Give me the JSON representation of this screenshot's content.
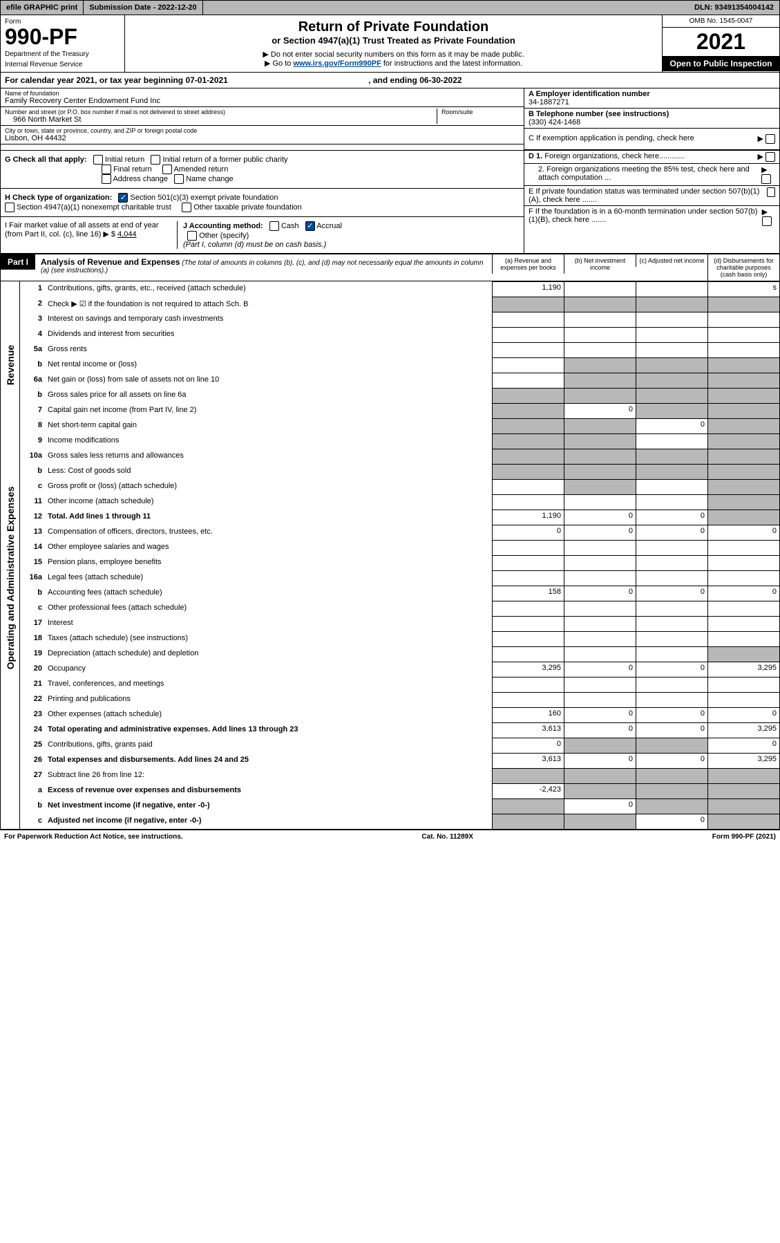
{
  "topbar": {
    "efile": "efile GRAPHIC print",
    "submission": "Submission Date - 2022-12-20",
    "dln": "DLN: 93491354004142"
  },
  "header": {
    "form_word": "Form",
    "form_num": "990-PF",
    "dept": "Department of the Treasury",
    "irs": "Internal Revenue Service",
    "title": "Return of Private Foundation",
    "subtitle": "or Section 4947(a)(1) Trust Treated as Private Foundation",
    "instr1": "▶ Do not enter social security numbers on this form as it may be made public.",
    "instr2_pre": "▶ Go to ",
    "instr2_link": "www.irs.gov/Form990PF",
    "instr2_post": " for instructions and the latest information.",
    "omb": "OMB No. 1545-0047",
    "year": "2021",
    "open": "Open to Public Inspection"
  },
  "cal": {
    "text_pre": "For calendar year 2021, or tax year beginning ",
    "begin": "07-01-2021",
    "text_mid": " , and ending ",
    "end": "06-30-2022"
  },
  "info": {
    "name_label": "Name of foundation",
    "name": "Family Recovery Center Endowment Fund Inc",
    "addr_label": "Number and street (or P.O. box number if mail is not delivered to street address)",
    "addr": "966 North Market St",
    "room_label": "Room/suite",
    "city_label": "City or town, state or province, country, and ZIP or foreign postal code",
    "city": "Lisbon, OH  44432",
    "ein_label": "A Employer identification number",
    "ein": "34-1887271",
    "tel_label": "B Telephone number (see instructions)",
    "tel": "(330) 424-1468",
    "c_label": "C If exemption application is pending, check here",
    "d1": "D 1. Foreign organizations, check here............",
    "d2": "2. Foreign organizations meeting the 85% test, check here and attach computation ...",
    "e": "E  If private foundation status was terminated under section 507(b)(1)(A), check here .......",
    "f": "F  If the foundation is in a 60-month termination under section 507(b)(1)(B), check here .......",
    "g": "G Check all that apply:",
    "g_opts": [
      "Initial return",
      "Initial return of a former public charity",
      "Final return",
      "Amended return",
      "Address change",
      "Name change"
    ],
    "h": "H Check type of organization:",
    "h1": "Section 501(c)(3) exempt private foundation",
    "h2": "Section 4947(a)(1) nonexempt charitable trust",
    "h3": "Other taxable private foundation",
    "i_label": "I Fair market value of all assets at end of year (from Part II, col. (c), line 16) ▶ $",
    "i_val": "4,044",
    "j_label": "J Accounting method:",
    "j_cash": "Cash",
    "j_accrual": "Accrual",
    "j_other": "Other (specify)",
    "j_note": "(Part I, column (d) must be on cash basis.)"
  },
  "part1": {
    "tab": "Part I",
    "title": "Analysis of Revenue and Expenses",
    "note": "(The total of amounts in columns (b), (c), and (d) may not necessarily equal the amounts in column (a) (see instructions).)",
    "cols": {
      "a": "(a)  Revenue and expenses per books",
      "b": "(b)  Net investment income",
      "c": "(c)  Adjusted net income",
      "d": "(d)  Disbursements for charitable purposes (cash basis only)"
    }
  },
  "sides": {
    "rev": "Revenue",
    "exp": "Operating and Administrative Expenses"
  },
  "lines": [
    {
      "n": "1",
      "d": "Contributions, gifts, grants, etc., received (attach schedule)",
      "a": "1,190",
      "b": "",
      "c": "",
      "ds": "s",
      "cs": "s",
      "dd": "s"
    },
    {
      "n": "2",
      "d": "Check ▶ ☑ if the foundation is not required to attach Sch. B",
      "sa": "s",
      "sb": "s",
      "sc": "s",
      "sd": "s"
    },
    {
      "n": "3",
      "d": "Interest on savings and temporary cash investments"
    },
    {
      "n": "4",
      "d": "Dividends and interest from securities"
    },
    {
      "n": "5a",
      "d": "Gross rents"
    },
    {
      "n": "b",
      "d": "Net rental income or (loss)",
      "sb": "s",
      "sc": "s",
      "sd": "s"
    },
    {
      "n": "6a",
      "d": "Net gain or (loss) from sale of assets not on line 10",
      "sb": "s",
      "sc": "s",
      "sd": "s"
    },
    {
      "n": "b",
      "d": "Gross sales price for all assets on line 6a",
      "sa": "s",
      "sb": "s",
      "sc": "s",
      "sd": "s"
    },
    {
      "n": "7",
      "d": "Capital gain net income (from Part IV, line 2)",
      "b": "0",
      "sa": "s",
      "sc": "s",
      "sd": "s"
    },
    {
      "n": "8",
      "d": "Net short-term capital gain",
      "c": "0",
      "sa": "s",
      "sb": "s",
      "sd": "s"
    },
    {
      "n": "9",
      "d": "Income modifications",
      "sa": "s",
      "sb": "s",
      "sd": "s"
    },
    {
      "n": "10a",
      "d": "Gross sales less returns and allowances",
      "sa": "s",
      "sb": "s",
      "sc": "s",
      "sd": "s"
    },
    {
      "n": "b",
      "d": "Less: Cost of goods sold",
      "sa": "s",
      "sb": "s",
      "sc": "s",
      "sd": "s"
    },
    {
      "n": "c",
      "d": "Gross profit or (loss) (attach schedule)",
      "sb": "s",
      "sd": "s"
    },
    {
      "n": "11",
      "d": "Other income (attach schedule)",
      "sd": "s"
    },
    {
      "n": "12",
      "d": "Total. Add lines 1 through 11",
      "bold": true,
      "a": "1,190",
      "b": "0",
      "c": "0",
      "sd": "s"
    },
    {
      "n": "13",
      "d": "Compensation of officers, directors, trustees, etc.",
      "a": "0",
      "b": "0",
      "c": "0",
      "dd": "0"
    },
    {
      "n": "14",
      "d": "Other employee salaries and wages"
    },
    {
      "n": "15",
      "d": "Pension plans, employee benefits"
    },
    {
      "n": "16a",
      "d": "Legal fees (attach schedule)"
    },
    {
      "n": "b",
      "d": "Accounting fees (attach schedule)",
      "a": "158",
      "b": "0",
      "c": "0",
      "dd": "0"
    },
    {
      "n": "c",
      "d": "Other professional fees (attach schedule)"
    },
    {
      "n": "17",
      "d": "Interest"
    },
    {
      "n": "18",
      "d": "Taxes (attach schedule) (see instructions)"
    },
    {
      "n": "19",
      "d": "Depreciation (attach schedule) and depletion",
      "sd": "s"
    },
    {
      "n": "20",
      "d": "Occupancy",
      "a": "3,295",
      "b": "0",
      "c": "0",
      "dd": "3,295"
    },
    {
      "n": "21",
      "d": "Travel, conferences, and meetings"
    },
    {
      "n": "22",
      "d": "Printing and publications"
    },
    {
      "n": "23",
      "d": "Other expenses (attach schedule)",
      "a": "160",
      "b": "0",
      "c": "0",
      "dd": "0"
    },
    {
      "n": "24",
      "d": "Total operating and administrative expenses. Add lines 13 through 23",
      "bold": true,
      "a": "3,613",
      "b": "0",
      "c": "0",
      "dd": "3,295"
    },
    {
      "n": "25",
      "d": "Contributions, gifts, grants paid",
      "a": "0",
      "sb": "s",
      "sc": "s",
      "dd": "0"
    },
    {
      "n": "26",
      "d": "Total expenses and disbursements. Add lines 24 and 25",
      "bold": true,
      "a": "3,613",
      "b": "0",
      "c": "0",
      "dd": "3,295"
    },
    {
      "n": "27",
      "d": "Subtract line 26 from line 12:",
      "sa": "s",
      "sb": "s",
      "sc": "s",
      "sd": "s"
    },
    {
      "n": "a",
      "d": "Excess of revenue over expenses and disbursements",
      "bold": true,
      "a": "-2,423",
      "sb": "s",
      "sc": "s",
      "sd": "s"
    },
    {
      "n": "b",
      "d": "Net investment income (if negative, enter -0-)",
      "bold": true,
      "b": "0",
      "sa": "s",
      "sc": "s",
      "sd": "s"
    },
    {
      "n": "c",
      "d": "Adjusted net income (if negative, enter -0-)",
      "bold": true,
      "c": "0",
      "sa": "s",
      "sb": "s",
      "sd": "s"
    }
  ],
  "footer": {
    "left": "For Paperwork Reduction Act Notice, see instructions.",
    "mid": "Cat. No. 11289X",
    "right": "Form 990-PF (2021)"
  }
}
